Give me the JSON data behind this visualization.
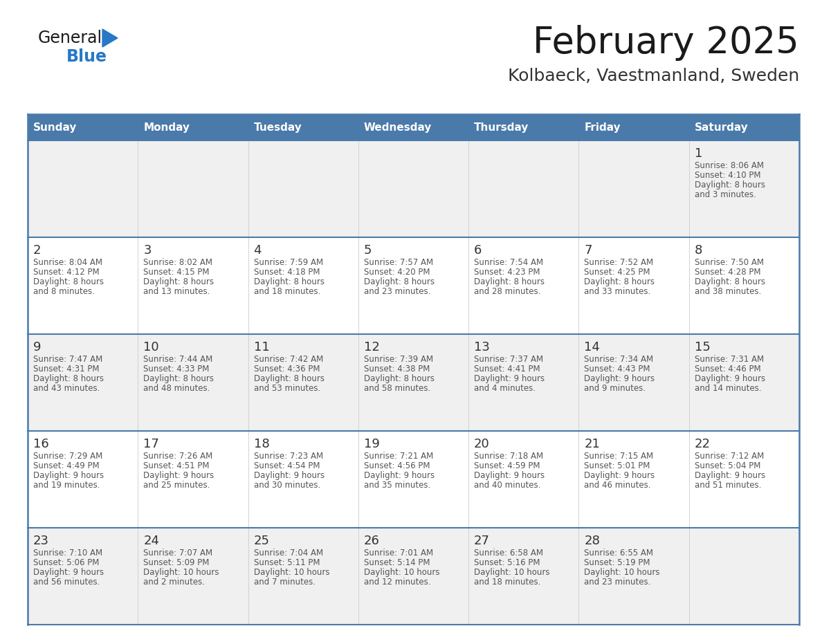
{
  "title": "February 2025",
  "subtitle": "Kolbaeck, Vaestmanland, Sweden",
  "days_of_week": [
    "Sunday",
    "Monday",
    "Tuesday",
    "Wednesday",
    "Thursday",
    "Friday",
    "Saturday"
  ],
  "header_bg": "#4a7aaa",
  "header_text": "#ffffff",
  "row_bg_light": "#f0f0f0",
  "row_bg_white": "#ffffff",
  "cell_border_color": "#4a7aaa",
  "day_number_color": "#333333",
  "info_text_color": "#555555",
  "title_color": "#1a1a1a",
  "subtitle_color": "#333333",
  "logo_general_color": "#1a1a1a",
  "logo_blue_color": "#2878c8",
  "calendar_data": [
    [
      null,
      null,
      null,
      null,
      null,
      null,
      {
        "day": 1,
        "sunrise": "8:06 AM",
        "sunset": "4:10 PM",
        "daylight": "8 hours and 3 minutes."
      }
    ],
    [
      {
        "day": 2,
        "sunrise": "8:04 AM",
        "sunset": "4:12 PM",
        "daylight": "8 hours and 8 minutes."
      },
      {
        "day": 3,
        "sunrise": "8:02 AM",
        "sunset": "4:15 PM",
        "daylight": "8 hours and 13 minutes."
      },
      {
        "day": 4,
        "sunrise": "7:59 AM",
        "sunset": "4:18 PM",
        "daylight": "8 hours and 18 minutes."
      },
      {
        "day": 5,
        "sunrise": "7:57 AM",
        "sunset": "4:20 PM",
        "daylight": "8 hours and 23 minutes."
      },
      {
        "day": 6,
        "sunrise": "7:54 AM",
        "sunset": "4:23 PM",
        "daylight": "8 hours and 28 minutes."
      },
      {
        "day": 7,
        "sunrise": "7:52 AM",
        "sunset": "4:25 PM",
        "daylight": "8 hours and 33 minutes."
      },
      {
        "day": 8,
        "sunrise": "7:50 AM",
        "sunset": "4:28 PM",
        "daylight": "8 hours and 38 minutes."
      }
    ],
    [
      {
        "day": 9,
        "sunrise": "7:47 AM",
        "sunset": "4:31 PM",
        "daylight": "8 hours and 43 minutes."
      },
      {
        "day": 10,
        "sunrise": "7:44 AM",
        "sunset": "4:33 PM",
        "daylight": "8 hours and 48 minutes."
      },
      {
        "day": 11,
        "sunrise": "7:42 AM",
        "sunset": "4:36 PM",
        "daylight": "8 hours and 53 minutes."
      },
      {
        "day": 12,
        "sunrise": "7:39 AM",
        "sunset": "4:38 PM",
        "daylight": "8 hours and 58 minutes."
      },
      {
        "day": 13,
        "sunrise": "7:37 AM",
        "sunset": "4:41 PM",
        "daylight": "9 hours and 4 minutes."
      },
      {
        "day": 14,
        "sunrise": "7:34 AM",
        "sunset": "4:43 PM",
        "daylight": "9 hours and 9 minutes."
      },
      {
        "day": 15,
        "sunrise": "7:31 AM",
        "sunset": "4:46 PM",
        "daylight": "9 hours and 14 minutes."
      }
    ],
    [
      {
        "day": 16,
        "sunrise": "7:29 AM",
        "sunset": "4:49 PM",
        "daylight": "9 hours and 19 minutes."
      },
      {
        "day": 17,
        "sunrise": "7:26 AM",
        "sunset": "4:51 PM",
        "daylight": "9 hours and 25 minutes."
      },
      {
        "day": 18,
        "sunrise": "7:23 AM",
        "sunset": "4:54 PM",
        "daylight": "9 hours and 30 minutes."
      },
      {
        "day": 19,
        "sunrise": "7:21 AM",
        "sunset": "4:56 PM",
        "daylight": "9 hours and 35 minutes."
      },
      {
        "day": 20,
        "sunrise": "7:18 AM",
        "sunset": "4:59 PM",
        "daylight": "9 hours and 40 minutes."
      },
      {
        "day": 21,
        "sunrise": "7:15 AM",
        "sunset": "5:01 PM",
        "daylight": "9 hours and 46 minutes."
      },
      {
        "day": 22,
        "sunrise": "7:12 AM",
        "sunset": "5:04 PM",
        "daylight": "9 hours and 51 minutes."
      }
    ],
    [
      {
        "day": 23,
        "sunrise": "7:10 AM",
        "sunset": "5:06 PM",
        "daylight": "9 hours and 56 minutes."
      },
      {
        "day": 24,
        "sunrise": "7:07 AM",
        "sunset": "5:09 PM",
        "daylight": "10 hours and 2 minutes."
      },
      {
        "day": 25,
        "sunrise": "7:04 AM",
        "sunset": "5:11 PM",
        "daylight": "10 hours and 7 minutes."
      },
      {
        "day": 26,
        "sunrise": "7:01 AM",
        "sunset": "5:14 PM",
        "daylight": "10 hours and 12 minutes."
      },
      {
        "day": 27,
        "sunrise": "6:58 AM",
        "sunset": "5:16 PM",
        "daylight": "10 hours and 18 minutes."
      },
      {
        "day": 28,
        "sunrise": "6:55 AM",
        "sunset": "5:19 PM",
        "daylight": "10 hours and 23 minutes."
      },
      null
    ]
  ]
}
